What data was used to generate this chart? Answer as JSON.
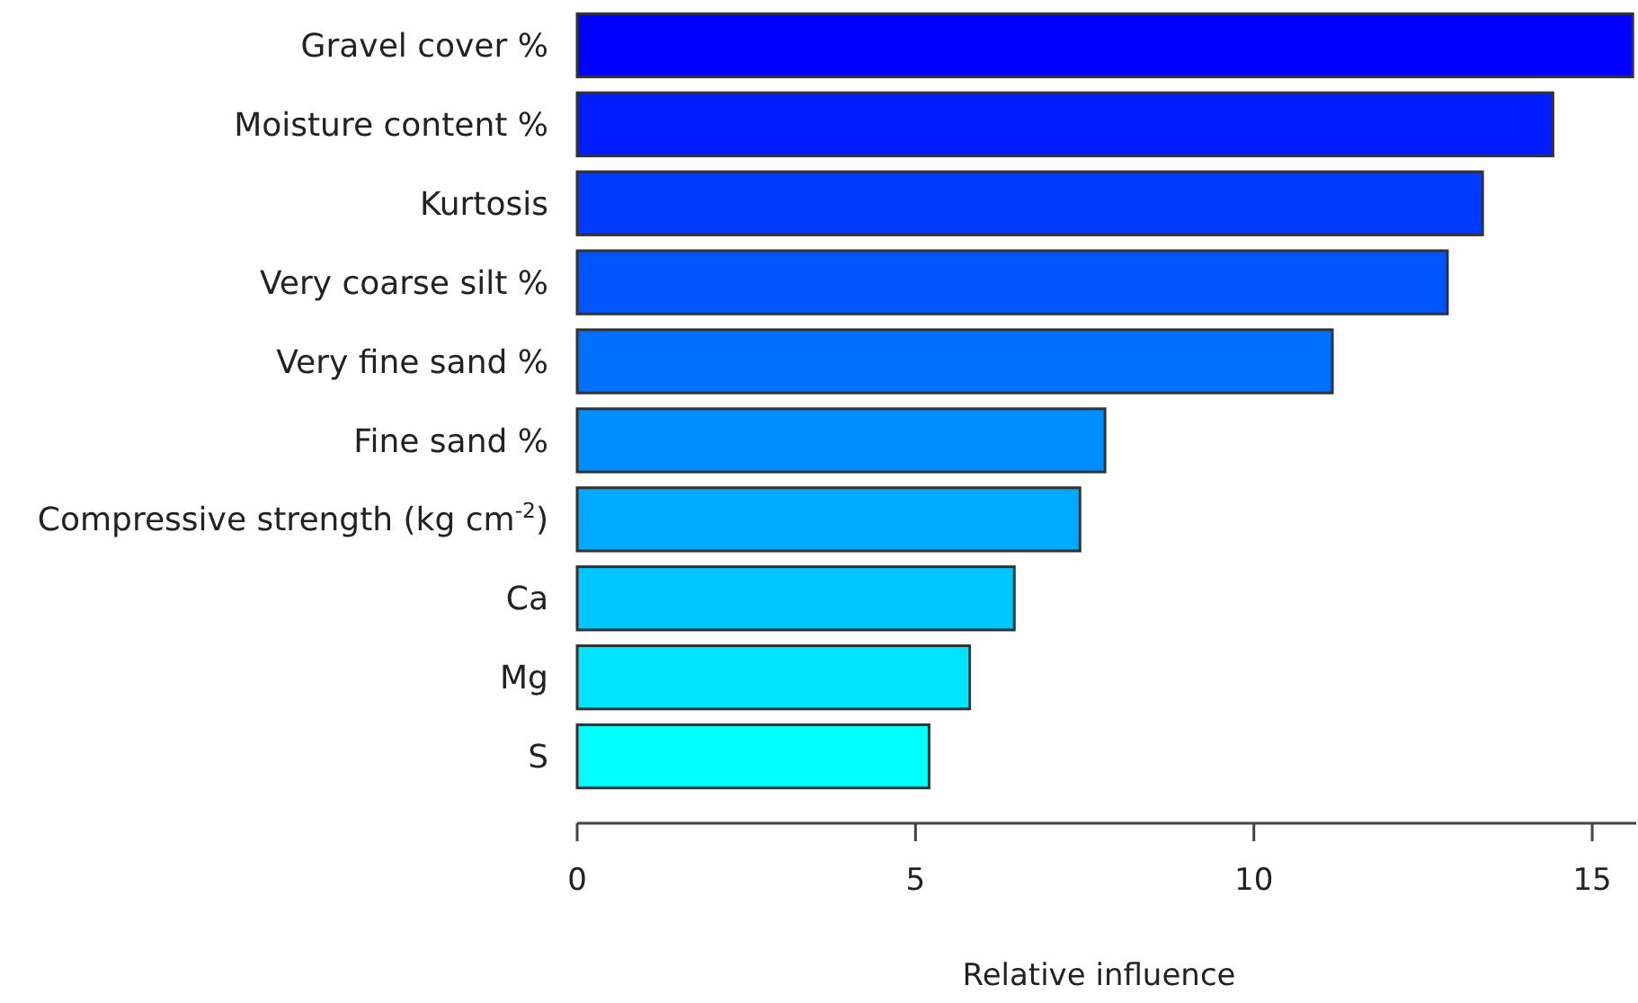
{
  "chart_data": {
    "type": "bar",
    "orientation": "horizontal",
    "xlabel": "Relative influence",
    "categories": [
      "Gravel cover %",
      "Moisture content %",
      "Kurtosis",
      "Very coarse silt %",
      "Very fine sand %",
      "Fine sand %",
      "Compressive strength (kg cm$^{-2}$)",
      "Ca",
      "Mg",
      "S"
    ],
    "values": [
      15.6,
      14.42,
      13.38,
      12.86,
      11.16,
      7.8,
      7.43,
      6.46,
      5.8,
      5.2
    ],
    "colors": [
      "#0000ff",
      "#001cff",
      "#0039ff",
      "#0055ff",
      "#0071ff",
      "#008eff",
      "#00aaff",
      "#00c6ff",
      "#00e3ff",
      "#00ffff"
    ],
    "xlim": [
      0,
      15.65
    ],
    "xticks": [
      0,
      5,
      10,
      15
    ],
    "grid": false
  }
}
